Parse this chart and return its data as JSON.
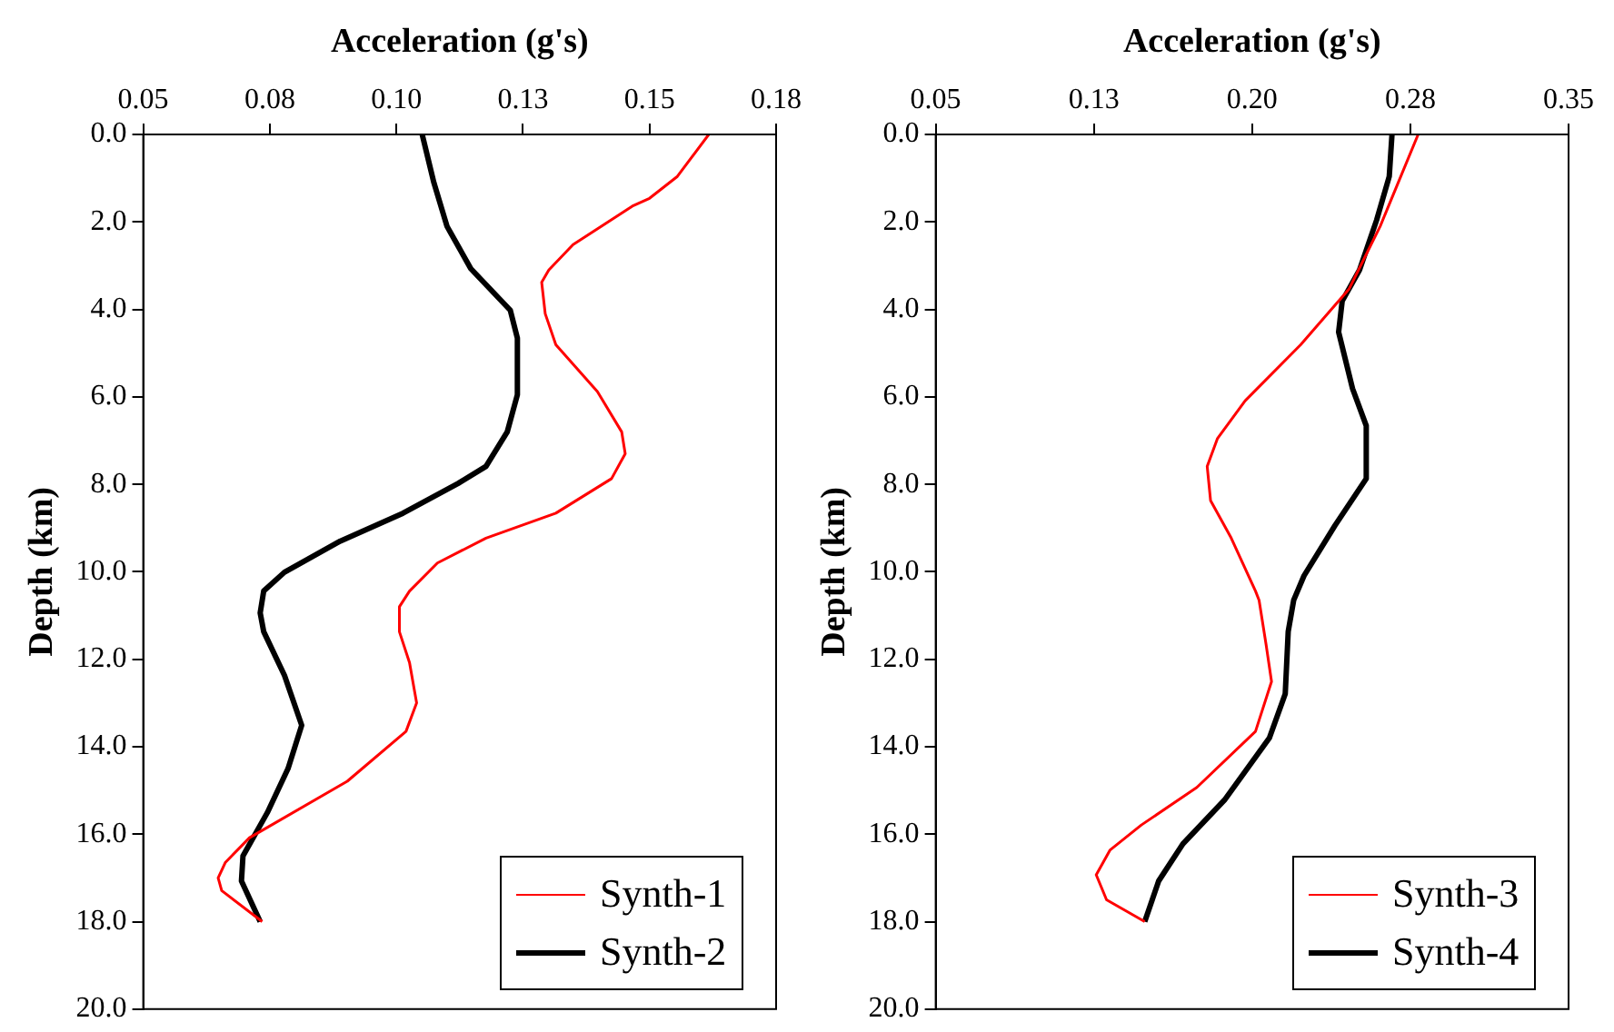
{
  "chart_data": [
    {
      "type": "line",
      "xlabel": "Acceleration (g's)",
      "ylabel": "Depth (km)",
      "xlim": [
        0.05,
        0.175
      ],
      "xticks": [
        0.05,
        {
          "value": 0.075,
          "label": "0.08"
        },
        {
          "value": 0.1,
          "label": "0.10"
        },
        {
          "value": 0.125,
          "label": "0.13"
        },
        0.15,
        {
          "value": 0.175,
          "label": "0.18"
        }
      ],
      "ylim": [
        20,
        0
      ],
      "yticks": [
        {
          "value": 0,
          "label": "0.0"
        },
        {
          "value": 2,
          "label": "2.0"
        },
        {
          "value": 4,
          "label": "4.0"
        },
        {
          "value": 6,
          "label": "6.0"
        },
        {
          "value": 8,
          "label": "8.0"
        },
        {
          "value": 10,
          "label": "10.0"
        },
        {
          "value": 12,
          "label": "12.0"
        },
        {
          "value": 14,
          "label": "14.0"
        },
        {
          "value": 16,
          "label": "16.0"
        },
        {
          "value": 18,
          "label": "18.0"
        },
        {
          "value": 20,
          "label": "20.0"
        }
      ],
      "grid": false,
      "legend": "bottom right",
      "marker": "none",
      "line_style": "solid",
      "series": [
        {
          "name": "Synth-1",
          "color": "#ff0000",
          "x": [
            0.1617,
            0.1555,
            0.15,
            0.1466,
            0.1349,
            0.1301,
            0.1287,
            0.1294,
            0.1315,
            0.1397,
            0.1445,
            0.1452,
            0.1425,
            0.1315,
            0.1177,
            0.1081,
            0.1026,
            0.1006,
            0.1006,
            0.1026,
            0.104,
            0.1019,
            0.0903,
            0.071,
            0.0662,
            0.0648,
            0.0655,
            0.0735
          ],
          "values": [
            0,
            0.96,
            1.46,
            1.64,
            2.52,
            3.1,
            3.38,
            4.1,
            4.81,
            5.88,
            6.8,
            7.3,
            7.87,
            8.66,
            9.23,
            9.8,
            10.44,
            10.8,
            11.37,
            12.08,
            13.0,
            13.65,
            14.79,
            16.08,
            16.65,
            17.0,
            17.29,
            18.0
          ]
        },
        {
          "name": "Synth-2",
          "color": "#000000",
          "x": [
            0.1051,
            0.1074,
            0.11,
            0.1147,
            0.1225,
            0.1239,
            0.1239,
            0.1219,
            0.1177,
            0.1122,
            0.1013,
            0.0889,
            0.0779,
            0.0738,
            0.0731,
            0.0738,
            0.0779,
            0.0813,
            0.0786,
            0.0745,
            0.0697,
            0.0694,
            0.0731
          ],
          "values": [
            0,
            1.1,
            2.1,
            3.07,
            4.02,
            4.66,
            5.95,
            6.8,
            7.59,
            7.98,
            8.66,
            9.3,
            10.01,
            10.44,
            10.94,
            11.37,
            12.37,
            13.51,
            14.5,
            15.51,
            16.5,
            17.07,
            18.0
          ]
        }
      ]
    },
    {
      "type": "line",
      "xlabel": "Acceleration (g's)",
      "ylabel": "Depth (km)",
      "xlim": [
        0.05,
        0.35
      ],
      "xticks": [
        0.05,
        {
          "value": 0.125,
          "label": "0.13"
        },
        {
          "value": 0.2,
          "label": "0.20"
        },
        {
          "value": 0.275,
          "label": "0.28"
        },
        0.35
      ],
      "ylim": [
        20,
        0
      ],
      "yticks": [
        {
          "value": 0,
          "label": "0.0"
        },
        {
          "value": 2,
          "label": "2.0"
        },
        {
          "value": 4,
          "label": "4.0"
        },
        {
          "value": 6,
          "label": "6.0"
        },
        {
          "value": 8,
          "label": "8.0"
        },
        {
          "value": 10,
          "label": "10.0"
        },
        {
          "value": 12,
          "label": "12.0"
        },
        {
          "value": 14,
          "label": "14.0"
        },
        {
          "value": 16,
          "label": "16.0"
        },
        {
          "value": 18,
          "label": "18.0"
        },
        {
          "value": 20,
          "label": "20.0"
        }
      ],
      "grid": false,
      "legend": "bottom right",
      "marker": "none",
      "line_style": "solid",
      "series": [
        {
          "name": "Synth-3",
          "color": "#ff0000",
          "x": [
            0.2787,
            0.2607,
            0.246,
            0.223,
            0.1967,
            0.1836,
            0.1787,
            0.1803,
            0.1901,
            0.2016,
            0.2033,
            0.2066,
            0.2092,
            0.2016,
            0.1738,
            0.1475,
            0.1327,
            0.1261,
            0.131,
            0.1491
          ],
          "values": [
            0,
            2.1,
            3.53,
            4.81,
            6.09,
            6.95,
            7.59,
            8.37,
            9.23,
            10.44,
            10.65,
            11.66,
            12.51,
            13.65,
            14.93,
            15.79,
            16.36,
            16.93,
            17.5,
            18.0
          ]
        },
        {
          "name": "Synth-4",
          "color": "#000000",
          "x": [
            0.2663,
            0.265,
            0.259,
            0.2509,
            0.2427,
            0.241,
            0.2476,
            0.2541,
            0.2541,
            0.2393,
            0.2246,
            0.2197,
            0.2171,
            0.2157,
            0.2082,
            0.1869,
            0.1672,
            0.1557,
            0.1491
          ],
          "values": [
            0,
            0.96,
            1.96,
            3.1,
            3.81,
            4.52,
            5.81,
            6.66,
            7.87,
            8.94,
            10.09,
            10.65,
            11.37,
            12.79,
            13.8,
            15.22,
            16.22,
            17.07,
            18.0
          ]
        }
      ]
    }
  ]
}
